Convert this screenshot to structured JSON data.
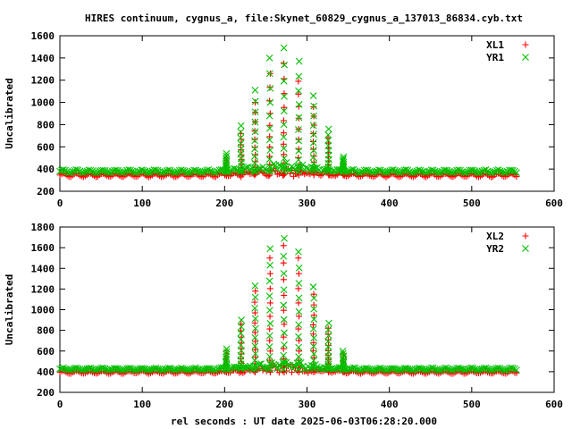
{
  "title": "HIRES continuum, cygnus_a, file:Skynet_60829_cygnus_a_137013_86834.cyb.txt",
  "xlabel": "rel seconds : UT date 2025-06-03T06:28:20.000",
  "colors": {
    "red": "#ff0000",
    "green": "#00c000"
  },
  "chart_data": [
    {
      "type": "scatter",
      "ylabel": "Uncalibrated",
      "xlim": [
        0,
        600
      ],
      "ylim": [
        200,
        1600
      ],
      "xticks": [
        0,
        100,
        200,
        300,
        400,
        500,
        600
      ],
      "yticks": [
        200,
        400,
        600,
        800,
        1000,
        1200,
        1400,
        1600
      ],
      "legend_position": "top-right",
      "series": [
        {
          "name": "XL1",
          "marker": "+",
          "color": "#ff0000",
          "baseline": 345,
          "baseline_amp": 15,
          "baseline_period": 16,
          "x_range": [
            0,
            556
          ],
          "source_center": 272,
          "source_sigma": 35,
          "source_peak": 1350,
          "scan_times": [
            202,
            220,
            237,
            255,
            272,
            290,
            308,
            326,
            344
          ],
          "scan_peaks": [
            500,
            720,
            1000,
            1260,
            1350,
            1190,
            960,
            680,
            450
          ]
        },
        {
          "name": "YR1",
          "marker": "x",
          "color": "#00c000",
          "baseline": 380,
          "baseline_amp": 12,
          "baseline_period": 16,
          "x_range": [
            0,
            556
          ],
          "source_center": 272,
          "source_sigma": 35,
          "source_peak": 1490,
          "scan_times": [
            202,
            220,
            237,
            255,
            272,
            290,
            308,
            326,
            344
          ],
          "scan_peaks": [
            540,
            790,
            1110,
            1400,
            1490,
            1370,
            1060,
            760,
            510
          ]
        }
      ]
    },
    {
      "type": "scatter",
      "ylabel": "Uncalibrated",
      "xlim": [
        0,
        600
      ],
      "ylim": [
        200,
        1800
      ],
      "xticks": [
        0,
        100,
        200,
        300,
        400,
        500,
        600
      ],
      "yticks": [
        200,
        400,
        600,
        800,
        1000,
        1200,
        1400,
        1600,
        1800
      ],
      "legend_position": "top-right",
      "series": [
        {
          "name": "XL2",
          "marker": "+",
          "color": "#ff0000",
          "baseline": 395,
          "baseline_amp": 12,
          "baseline_period": 16,
          "x_range": [
            0,
            556
          ],
          "source_center": 272,
          "source_sigma": 35,
          "source_peak": 1620,
          "scan_times": [
            202,
            220,
            237,
            255,
            272,
            290,
            308,
            326,
            344
          ],
          "scan_peaks": [
            600,
            860,
            1180,
            1500,
            1620,
            1500,
            1150,
            820,
            570
          ]
        },
        {
          "name": "YR2",
          "marker": "x",
          "color": "#00c000",
          "baseline": 425,
          "baseline_amp": 10,
          "baseline_period": 16,
          "x_range": [
            0,
            556
          ],
          "source_center": 272,
          "source_sigma": 35,
          "source_peak": 1690,
          "scan_times": [
            202,
            220,
            237,
            255,
            272,
            290,
            308,
            326,
            344
          ],
          "scan_peaks": [
            620,
            900,
            1230,
            1590,
            1690,
            1560,
            1220,
            870,
            600
          ]
        }
      ]
    }
  ]
}
